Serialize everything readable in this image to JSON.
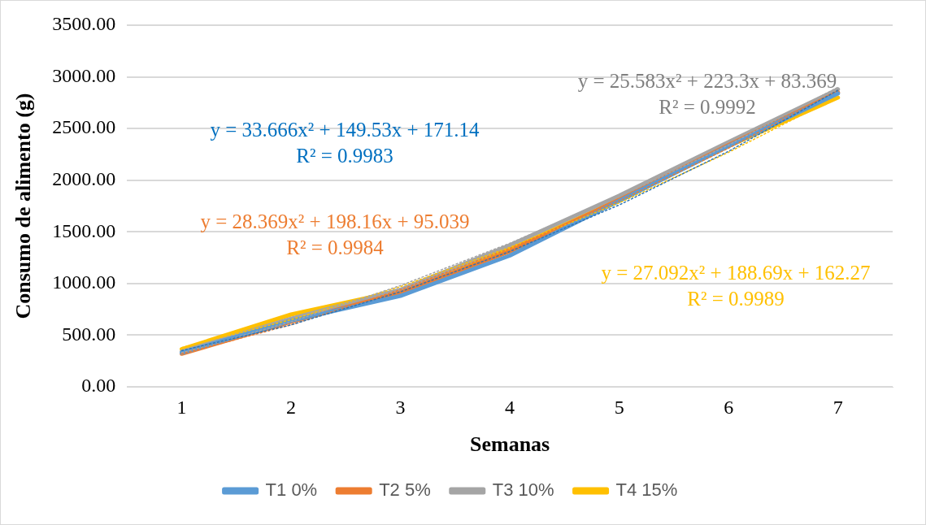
{
  "chart_data": {
    "type": "line",
    "xlabel": "Semanas",
    "ylabel": "Consumo de alimento (g)",
    "categories": [
      "1",
      "2",
      "3",
      "4",
      "5",
      "6",
      "7"
    ],
    "series": [
      {
        "name": "T1 0%",
        "color": "#5b9bd5",
        "values": [
          330,
          640,
          880,
          1270,
          1800,
          2330,
          2840
        ]
      },
      {
        "name": "T2 5%",
        "color": "#ed7d31",
        "values": [
          320,
          630,
          910,
          1310,
          1810,
          2340,
          2850
        ]
      },
      {
        "name": "T3 10%",
        "color": "#a5a5a5",
        "values": [
          340,
          660,
          940,
          1370,
          1850,
          2370,
          2880
        ]
      },
      {
        "name": "T4 15%",
        "color": "#ffc000",
        "values": [
          365,
          700,
          930,
          1330,
          1810,
          2330,
          2800
        ]
      },
      {
        "color": "#2e75b6",
        "line_style": "dotted",
        "values": [
          350,
          600,
          920,
          1310,
          1760,
          2280,
          2870
        ]
      },
      {
        "color": "#ed7d31",
        "line_style": "dotted",
        "values": [
          320,
          600,
          940,
          1340,
          1800,
          2310,
          2870
        ]
      },
      {
        "color": "#a5a5a5",
        "line_style": "dotted",
        "values": [
          330,
          630,
          980,
          1390,
          1840,
          2340,
          2900
        ]
      },
      {
        "color": "#ffc000",
        "line_style": "dotted",
        "values": [
          380,
          650,
          970,
          1350,
          1780,
          2270,
          2810
        ]
      }
    ],
    "ylim": [
      0,
      3500
    ],
    "yticks": [
      {
        "value": 0,
        "label": "0.00"
      },
      {
        "value": 500,
        "label": "500.00"
      },
      {
        "value": 1000,
        "label": "1000.00"
      },
      {
        "value": 1500,
        "label": "1500.00"
      },
      {
        "value": 2000,
        "label": "2000.00"
      },
      {
        "value": 2500,
        "label": "2500.00"
      },
      {
        "value": 3000,
        "label": "3000.00"
      },
      {
        "value": 3500,
        "label": "3500.00"
      }
    ],
    "grid": "y",
    "legend": "bottom",
    "marker": "none",
    "line_style": "solid",
    "annotations": [
      "y = 33.666x² + 149.53x + 171.14\nR² = 0.9983",
      "y = 28.369x² + 198.16x + 95.039\nR² = 0.9984",
      "y = 25.583x² + 223.3x + 83.369\nR² = 0.9992",
      "y = 27.092x² + 188.69x + 162.27\nR² = 0.9989"
    ]
  }
}
